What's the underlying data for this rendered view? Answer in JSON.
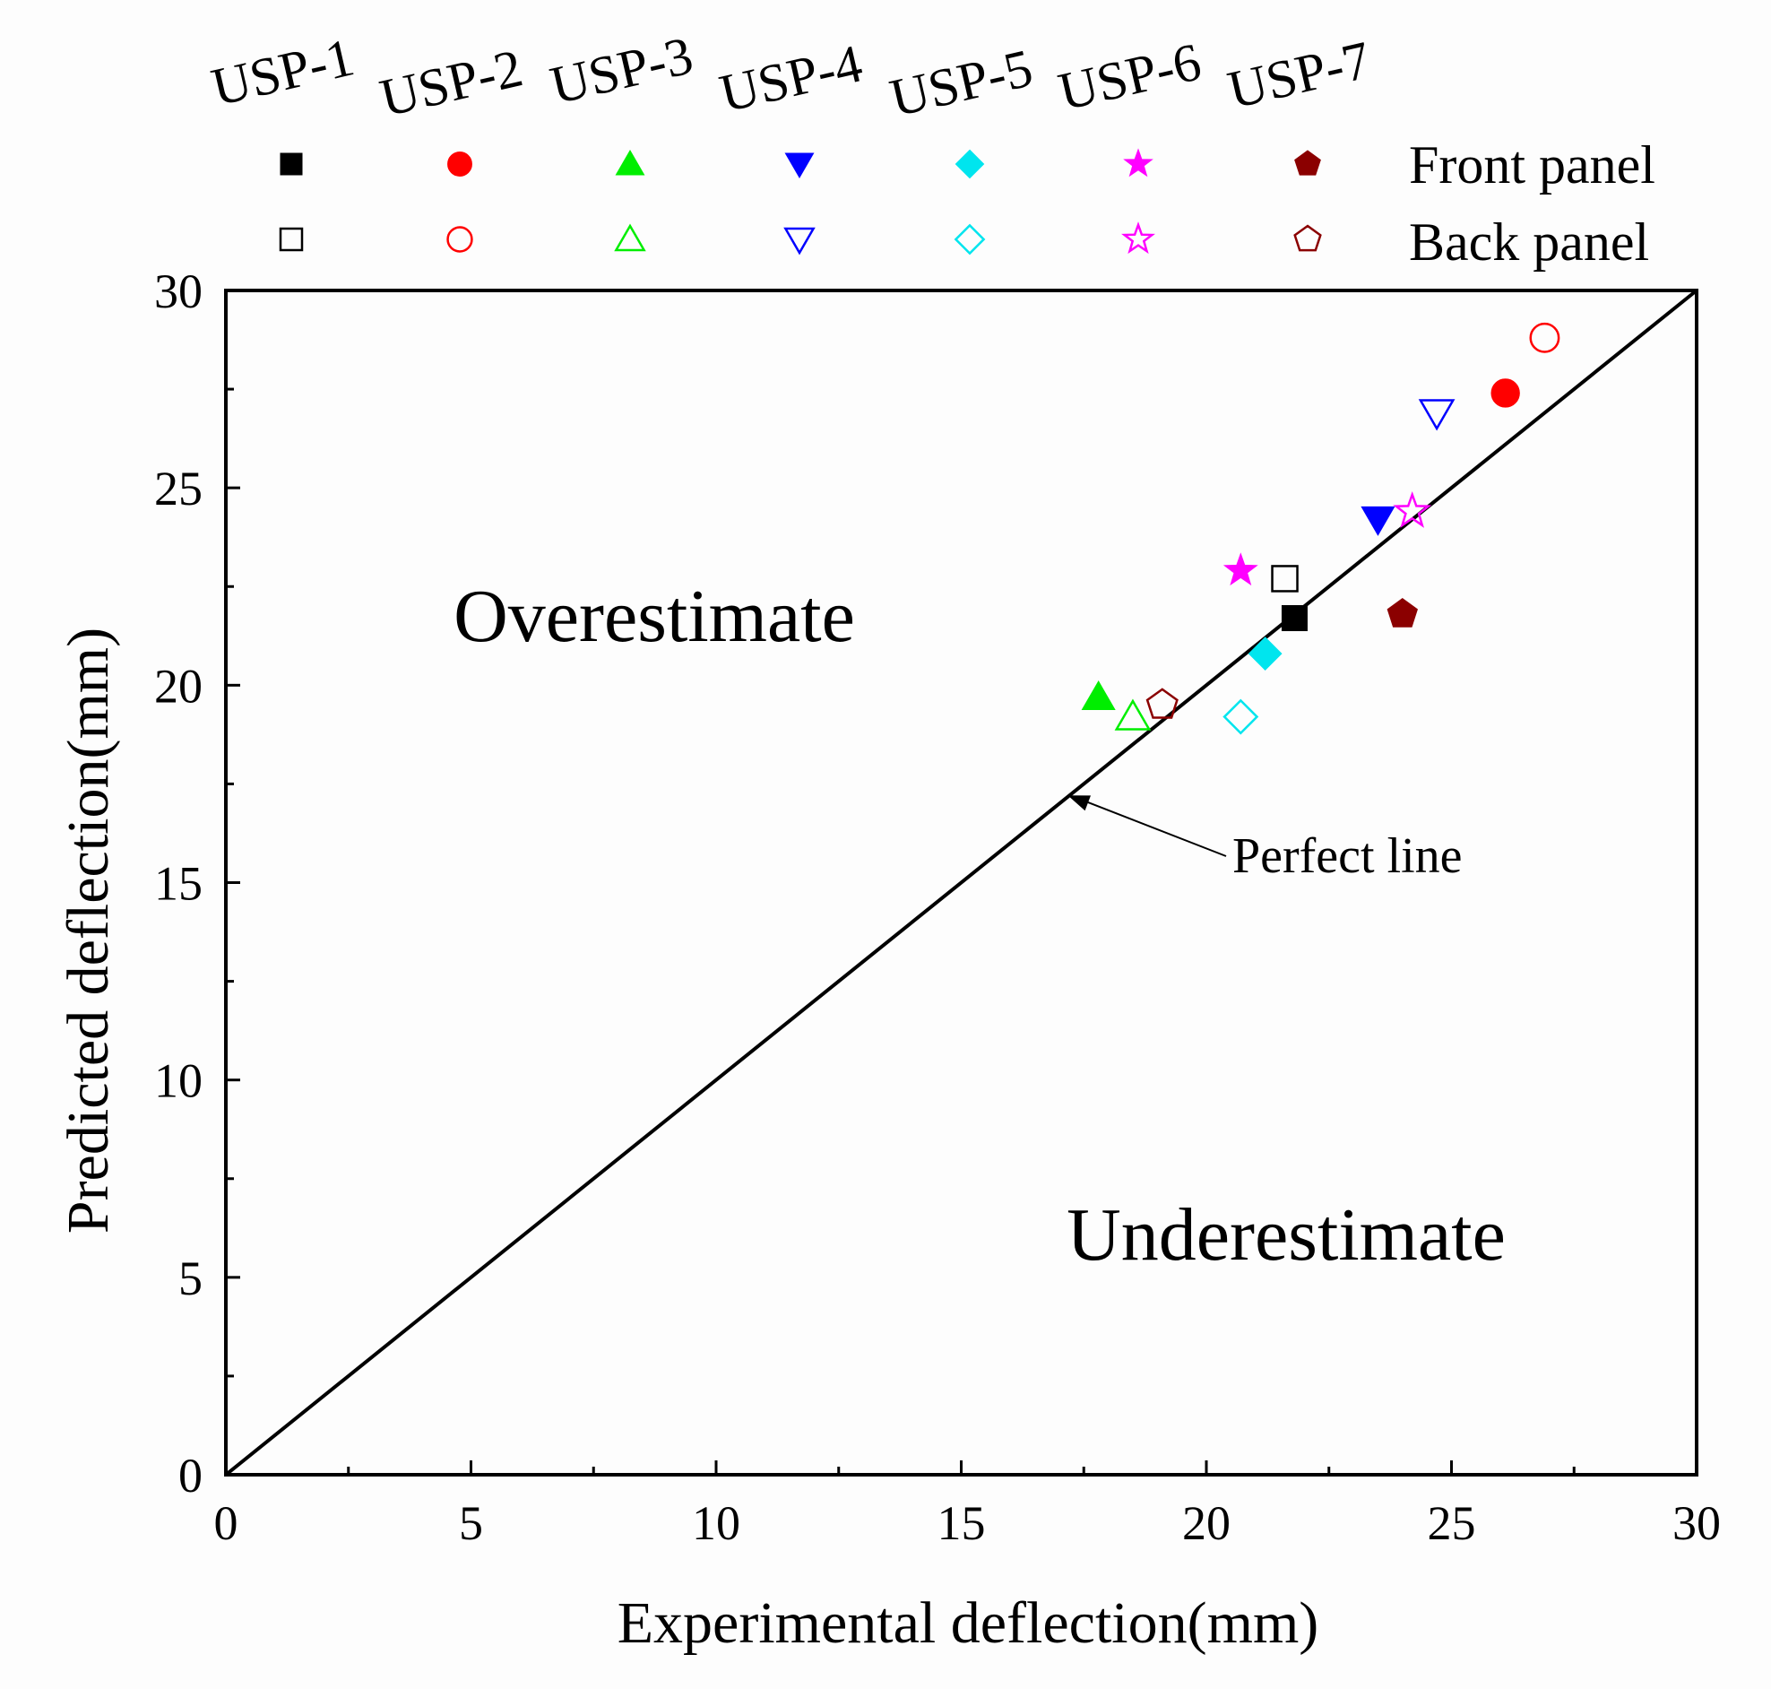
{
  "chart_data": {
    "type": "scatter",
    "xlabel": "Experimental deflection(mm)",
    "ylabel": "Predicted deflection(mm)",
    "xlim": [
      0,
      30
    ],
    "ylim": [
      0,
      30
    ],
    "x_ticks": [
      "0",
      "5",
      "10",
      "15",
      "20",
      "25",
      "30"
    ],
    "y_ticks": [
      "0",
      "5",
      "10",
      "15",
      "20",
      "25",
      "30"
    ],
    "grid": false,
    "legend_position": "top",
    "legend_rows": [
      "Front panel",
      "Back panel"
    ],
    "specimens": [
      {
        "name": "USP-1",
        "color": "#000000",
        "marker": "square",
        "front": [
          21.8,
          21.7
        ],
        "back": [
          21.6,
          22.7
        ]
      },
      {
        "name": "USP-2",
        "color": "#ff0000",
        "marker": "circle",
        "front": [
          26.1,
          27.4
        ],
        "back": [
          26.9,
          28.8
        ]
      },
      {
        "name": "USP-3",
        "color": "#00ee00",
        "marker": "triangle-up",
        "front": [
          17.8,
          19.7
        ],
        "back": [
          18.5,
          19.2
        ]
      },
      {
        "name": "USP-4",
        "color": "#0000ff",
        "marker": "triangle-down",
        "front": [
          23.5,
          24.2
        ],
        "back": [
          24.7,
          26.9
        ]
      },
      {
        "name": "USP-5",
        "color": "#00e5ee",
        "marker": "diamond",
        "front": [
          21.2,
          20.8
        ],
        "back": [
          20.7,
          19.2
        ]
      },
      {
        "name": "USP-6",
        "color": "#ff00ff",
        "marker": "star",
        "front": [
          20.7,
          22.9
        ],
        "back": [
          24.2,
          24.4
        ]
      },
      {
        "name": "USP-7",
        "color": "#8b0000",
        "marker": "pentagon",
        "front": [
          24.0,
          21.8
        ],
        "back": [
          19.1,
          19.5
        ]
      }
    ],
    "reference_line": {
      "from": [
        0,
        0
      ],
      "to": [
        30,
        30
      ],
      "label": "Perfect line",
      "label_anchor": [
        17.1,
        17.3
      ]
    },
    "annotations": [
      "Overestimate",
      "Underestimate"
    ]
  }
}
